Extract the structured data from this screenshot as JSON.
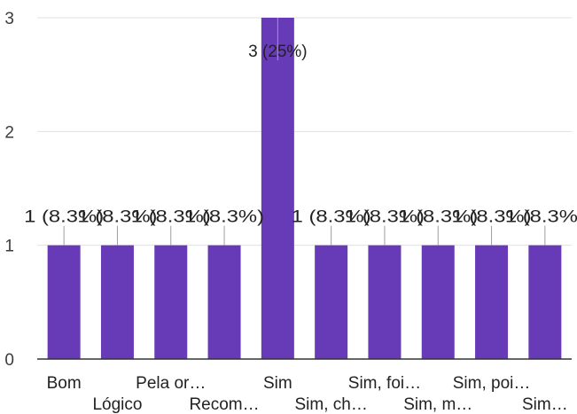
{
  "chart_data": {
    "type": "bar",
    "categories": [
      "Bom",
      "Lógico",
      "Pela or…",
      "Recom…",
      "Sim",
      "Sim, ch…",
      "Sim, foi…",
      "Sim, m…",
      "Sim, poi…",
      "Sim…"
    ],
    "values": [
      1,
      1,
      1,
      1,
      3,
      1,
      1,
      1,
      1,
      1
    ],
    "data_labels": [
      "1 (8.3%)",
      "1 (8.3%)",
      "1 (8.3%)",
      "1 (8.3%)",
      "3 (25%)",
      "1 (8.3%)",
      "1 (8.3%)",
      "1 (8.3%)",
      "1 (8.3%)",
      "1 (8.3%)"
    ],
    "title": "",
    "xlabel": "",
    "ylabel": "",
    "ylim": [
      0,
      3
    ],
    "yticks": [
      0,
      1,
      2,
      3
    ],
    "grid": true,
    "legend": "none",
    "bar_color": "#673ab7",
    "grid_color": "#e0e0e0",
    "axis_color": "#333333",
    "leader_color": "#9e9e9e"
  }
}
